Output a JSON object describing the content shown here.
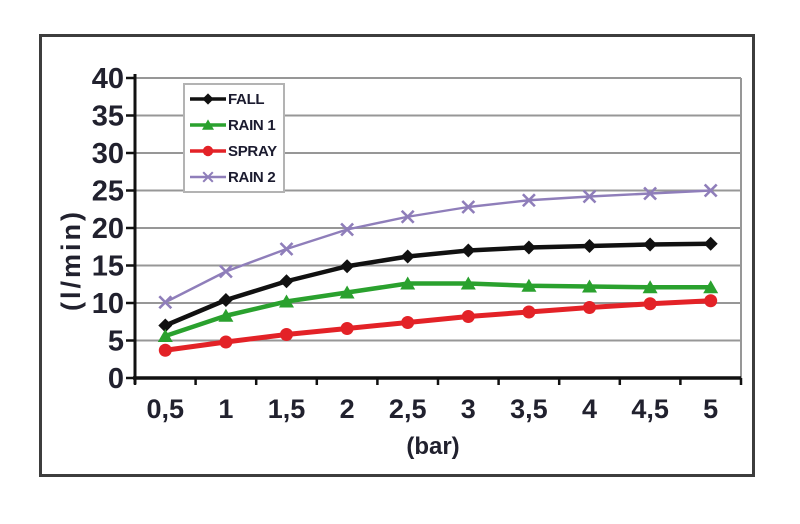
{
  "figure": {
    "background": "#ffffff",
    "frame_color": "#3d3d3d"
  },
  "chart_data": {
    "type": "line",
    "title": "",
    "xlabel": "(bar)",
    "ylabel": "(l/min)",
    "categories": [
      "0,5",
      "1",
      "1,5",
      "2",
      "2,5",
      "3",
      "3,5",
      "4",
      "4,5",
      "5"
    ],
    "x_values": [
      0.5,
      1,
      1.5,
      2,
      2.5,
      3,
      3.5,
      4,
      4.5,
      5
    ],
    "ylim": [
      0,
      40
    ],
    "y_ticks": [
      0,
      5,
      10,
      15,
      20,
      25,
      30,
      35,
      40
    ],
    "grid": "horizontal",
    "legend_position": "top-left-inside",
    "series": [
      {
        "name": "FALL",
        "color": "#111111",
        "marker": "diamond",
        "values": [
          7.0,
          10.4,
          12.9,
          14.9,
          16.2,
          17.0,
          17.4,
          17.6,
          17.8,
          17.9
        ]
      },
      {
        "name": "RAIN 1",
        "color": "#2aa12e",
        "marker": "triangle",
        "values": [
          5.6,
          8.3,
          10.2,
          11.4,
          12.6,
          12.6,
          12.3,
          12.2,
          12.1,
          12.1
        ]
      },
      {
        "name": "SPRAY",
        "color": "#e32227",
        "marker": "circle",
        "values": [
          3.7,
          4.8,
          5.8,
          6.6,
          7.4,
          8.2,
          8.8,
          9.4,
          9.9,
          10.3
        ]
      },
      {
        "name": "RAIN 2",
        "color": "#8f7eba",
        "marker": "x",
        "values": [
          10.1,
          14.2,
          17.2,
          19.8,
          21.5,
          22.8,
          23.7,
          24.2,
          24.6,
          25.0
        ]
      }
    ],
    "colors": {
      "grid": "#979797",
      "axis": "#111111",
      "text": "#21212e",
      "legend_border": "#b3b3b3"
    }
  }
}
